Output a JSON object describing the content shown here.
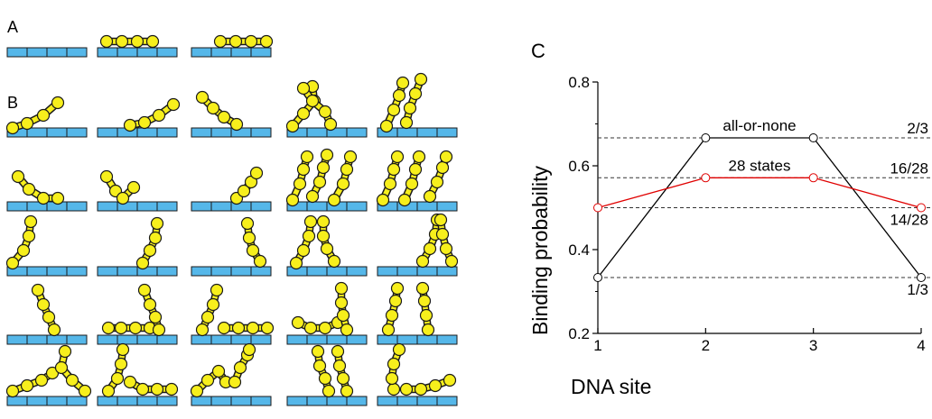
{
  "panels": {
    "a": "A",
    "b": "B",
    "c": "C"
  },
  "colors": {
    "dna": "#55b7e9",
    "molecule": "#f7ef1c",
    "outline": "#1a1a1a",
    "all_or_none": "#000000",
    "states": "#e00000",
    "reference": "#333333"
  },
  "chart_data": {
    "type": "line",
    "xlabel": "DNA site",
    "ylabel": "Binding probability",
    "x": [
      1,
      2,
      3,
      4
    ],
    "xticks": [
      "1",
      "2",
      "3",
      "4"
    ],
    "yticks": [
      "0.2",
      "0.4",
      "0.6",
      "0.8"
    ],
    "xlim": [
      1,
      4
    ],
    "ylim": [
      0.2,
      0.8
    ],
    "series": [
      {
        "name": "all-or-none",
        "color": "#000000",
        "values": [
          0.3333,
          0.6667,
          0.6667,
          0.3333
        ],
        "label_at": 2.5
      },
      {
        "name": "28 states",
        "color": "#e00000",
        "values": [
          0.5,
          0.5714,
          0.5714,
          0.5
        ],
        "label_at": 2.5
      }
    ],
    "reference_lines": [
      {
        "y": 0.6667,
        "label": "2/3"
      },
      {
        "y": 0.5714,
        "label": "16/28"
      },
      {
        "y": 0.5,
        "label": "14/28"
      },
      {
        "y": 0.3333,
        "label": "1/3"
      }
    ],
    "grid": false,
    "legend": "inline labels"
  }
}
